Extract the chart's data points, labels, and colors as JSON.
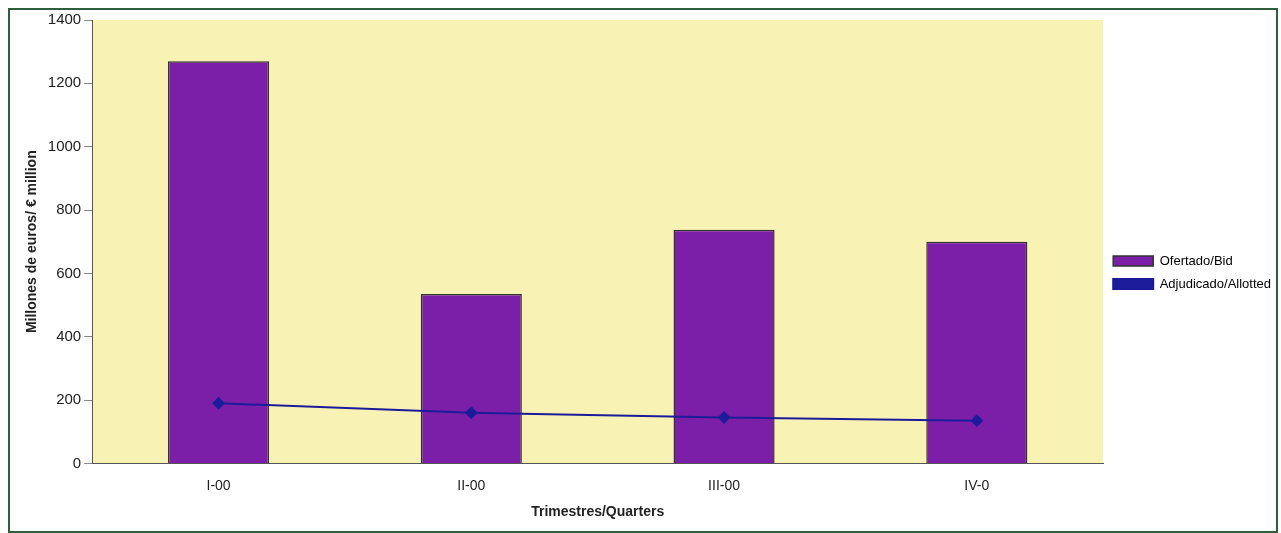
{
  "chart_data": {
    "type": "bar",
    "xlabel": "Trimestres/Quarters",
    "ylabel": "Millones de euros/ € million",
    "categories": [
      "I-00",
      "II-00",
      "III-00",
      "IV-0"
    ],
    "series": [
      {
        "name": "Ofertado/Bid",
        "color": "#7b1fa8",
        "values": [
          1270,
          535,
          738,
          700
        ]
      },
      {
        "name": "Adjudicado/Allotted",
        "type": "line",
        "color": "#1c1c9a",
        "values": [
          190,
          160,
          145,
          135
        ]
      }
    ],
    "ylim": [
      0,
      1400
    ],
    "yticks": [
      0,
      200,
      400,
      600,
      800,
      1000,
      1200,
      1400
    ],
    "grid": false,
    "legend": "right",
    "marker": "diamond",
    "line_style": "solid"
  }
}
